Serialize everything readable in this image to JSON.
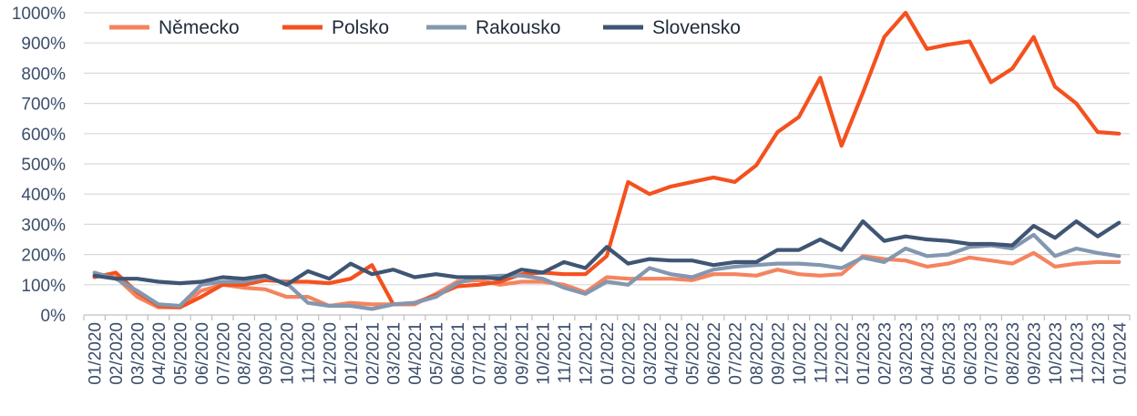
{
  "chart_data": {
    "type": "line",
    "title": "",
    "xlabel": "",
    "ylabel": "",
    "ylim": [
      0,
      1000
    ],
    "yticks": [
      "0%",
      "100%",
      "200%",
      "300%",
      "400%",
      "500%",
      "600%",
      "700%",
      "800%",
      "900%",
      "1000%"
    ],
    "grid": true,
    "legend_position": "top-left",
    "categories": [
      "01/2020",
      "02/2020",
      "03/2020",
      "04/2020",
      "05/2020",
      "06/2020",
      "07/2020",
      "08/2020",
      "09/2020",
      "10/2020",
      "11/2020",
      "12/2020",
      "01/2021",
      "02/2021",
      "03/2021",
      "04/2021",
      "05/2021",
      "06/2021",
      "07/2021",
      "08/2021",
      "09/2021",
      "10/2021",
      "11/2021",
      "12/2021",
      "01/2022",
      "02/2022",
      "03/2022",
      "04/2022",
      "05/2022",
      "06/2022",
      "07/2022",
      "08/2022",
      "09/2022",
      "10/2022",
      "11/2022",
      "12/2022",
      "01/2023",
      "02/2023",
      "03/2023",
      "04/2023",
      "05/2023",
      "06/2023",
      "07/2023",
      "08/2023",
      "09/2023",
      "10/2023",
      "11/2023",
      "12/2023",
      "01/2024"
    ],
    "series": [
      {
        "name": "Německo",
        "color": "#f4845f",
        "values": [
          130,
          125,
          60,
          25,
          25,
          80,
          100,
          90,
          85,
          60,
          60,
          30,
          40,
          35,
          35,
          35,
          70,
          110,
          115,
          100,
          110,
          110,
          100,
          75,
          125,
          120,
          120,
          120,
          115,
          135,
          135,
          130,
          150,
          135,
          130,
          135,
          195,
          185,
          180,
          160,
          170,
          190,
          180,
          170,
          205,
          160,
          170,
          175,
          175
        ]
      },
      {
        "name": "Polsko",
        "color": "#f4511e",
        "values": [
          125,
          140,
          75,
          30,
          25,
          60,
          100,
          100,
          115,
          110,
          110,
          105,
          120,
          165,
          35,
          40,
          65,
          95,
          100,
          110,
          135,
          140,
          135,
          135,
          195,
          440,
          400,
          425,
          440,
          455,
          440,
          495,
          605,
          655,
          785,
          560,
          735,
          920,
          1000,
          880,
          895,
          905,
          770,
          815,
          920,
          755,
          700,
          605,
          600
        ]
      },
      {
        "name": "Rakousko",
        "color": "#8497b0",
        "values": [
          140,
          120,
          80,
          35,
          30,
          100,
          110,
          110,
          125,
          105,
          40,
          30,
          30,
          20,
          35,
          40,
          60,
          105,
          125,
          130,
          130,
          120,
          90,
          70,
          110,
          100,
          155,
          135,
          125,
          150,
          160,
          165,
          170,
          170,
          165,
          155,
          190,
          175,
          220,
          195,
          200,
          225,
          230,
          220,
          265,
          195,
          220,
          205,
          195
        ]
      },
      {
        "name": "Slovensko",
        "color": "#3f5573",
        "values": [
          130,
          120,
          120,
          110,
          105,
          110,
          125,
          120,
          130,
          100,
          145,
          120,
          170,
          135,
          150,
          125,
          135,
          125,
          125,
          120,
          150,
          140,
          175,
          155,
          225,
          170,
          185,
          180,
          180,
          165,
          175,
          175,
          215,
          215,
          250,
          215,
          310,
          245,
          260,
          250,
          245,
          235,
          235,
          230,
          295,
          255,
          310,
          260,
          305
        ]
      }
    ]
  }
}
